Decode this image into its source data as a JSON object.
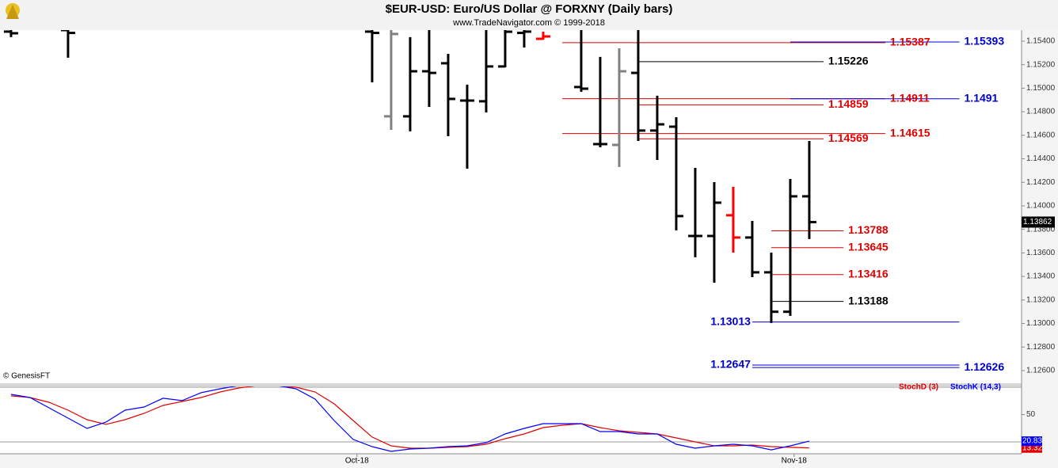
{
  "chart_data": [
    {
      "type": "ohlc",
      "title": "$EUR-USD:  Euro/US Dollar @ FORXNY  (Daily bars)",
      "subtitle": "www.TradeNavigator.com © 1999-2018",
      "credit": "© GenesisFT",
      "x": [
        0,
        3,
        19,
        20,
        21,
        22,
        23,
        24,
        25,
        26,
        27,
        28,
        30,
        31,
        32,
        33,
        34,
        35,
        36,
        37,
        38,
        39,
        40,
        41,
        42
      ],
      "open": [
        1.15481,
        1.15494,
        1.15481,
        1.14761,
        1.14761,
        1.15144,
        1.15212,
        1.14895,
        1.14889,
        1.15185,
        1.1547,
        1.1542,
        1.1501,
        1.14525,
        1.14518,
        1.1513,
        1.1464,
        1.14673,
        1.13744,
        1.13744,
        1.1392,
        1.13731,
        1.13435,
        1.131,
        1.14081
      ],
      "high": [
        1.1556,
        1.1556,
        1.1556,
        1.1556,
        1.15434,
        1.1556,
        1.15292,
        1.1503,
        1.1556,
        1.1556,
        1.1556,
        1.15481,
        1.1556,
        1.15266,
        1.15339,
        1.1556,
        1.14936,
        1.14754,
        1.14323,
        1.14202,
        1.14162,
        1.13872,
        1.13603,
        1.14229,
        1.14552
      ],
      "low": [
        1.15434,
        1.15259,
        1.1505,
        1.14646,
        1.14633,
        1.14841,
        1.14592,
        1.14316,
        1.14794,
        1.15178,
        1.15346,
        1.15413,
        1.1497,
        1.14498,
        1.1433,
        1.14552,
        1.1439,
        1.13792,
        1.13563,
        1.13347,
        1.13603,
        1.13394,
        1.13004,
        1.13065,
        1.13718
      ],
      "close": [
        1.15467,
        1.1547,
        1.1547,
        1.15461,
        1.15144,
        1.1513,
        1.14909,
        1.14895,
        1.15185,
        1.1548,
        1.15481,
        1.1544,
        1.14996,
        1.14525,
        1.15144,
        1.1464,
        1.14693,
        1.13913,
        1.13744,
        1.14027,
        1.13731,
        1.13435,
        1.131,
        1.14081,
        1.13862
      ],
      "colors": [
        "#000000",
        "#000000",
        "#000000",
        "#808080",
        "#000000",
        "#000000",
        "#000000",
        "#000000",
        "#000000",
        "#000000",
        "#000000",
        "#ff0000",
        "#000000",
        "#000000",
        "#808080",
        "#000000",
        "#000000",
        "#000000",
        "#000000",
        "#000000",
        "#ff0000",
        "#000000",
        "#000000",
        "#000000",
        "#000000"
      ],
      "xlim": [
        -0.58,
        53.17
      ],
      "ylim": [
        1.12492,
        1.15494
      ],
      "yticks": [
        {
          "value": 1.154,
          "label": "1.15400"
        },
        {
          "value": 1.152,
          "label": "1.15200"
        },
        {
          "value": 1.15,
          "label": "1.15000"
        },
        {
          "value": 1.148,
          "label": "1.14800"
        },
        {
          "value": 1.146,
          "label": "1.14600"
        },
        {
          "value": 1.144,
          "label": "1.14400"
        },
        {
          "value": 1.142,
          "label": "1.14200"
        },
        {
          "value": 1.14,
          "label": "1.14000"
        },
        {
          "value": 1.138,
          "label": "1.13800"
        },
        {
          "value": 1.136,
          "label": "1.13600"
        },
        {
          "value": 1.134,
          "label": "1.13400"
        },
        {
          "value": 1.132,
          "label": "1.13200"
        },
        {
          "value": 1.13,
          "label": "1.13000"
        },
        {
          "value": 1.128,
          "label": "1.12800"
        },
        {
          "value": 1.126,
          "label": "1.12600"
        }
      ],
      "levels": [
        {
          "value": 1.15387,
          "color": "#e00000",
          "from": 29,
          "to": 46,
          "side": "right"
        },
        {
          "value": 1.15393,
          "color": "#0000cc",
          "from": 41,
          "to": 49.9,
          "side": "right"
        },
        {
          "value": 1.15226,
          "color": "#000000",
          "from": 33,
          "to": 42.75,
          "side": "right"
        },
        {
          "value": 1.14911,
          "color": "#e00000",
          "from": 29,
          "to": 46,
          "side": "right"
        },
        {
          "value": 1.1491,
          "color": "#0000cc",
          "from": 41,
          "to": 49.9,
          "side": "right"
        },
        {
          "value": 1.14859,
          "color": "#e00000",
          "from": 33,
          "to": 42.75,
          "side": "right"
        },
        {
          "value": 1.14615,
          "color": "#e00000",
          "from": 29,
          "to": 46,
          "side": "right"
        },
        {
          "value": 1.14569,
          "color": "#e00000",
          "from": 33,
          "to": 42.75,
          "side": "right"
        },
        {
          "value": 1.13788,
          "color": "#e00000",
          "from": 40,
          "to": 43.8,
          "side": "right"
        },
        {
          "value": 1.13645,
          "color": "#e00000",
          "from": 40,
          "to": 43.8,
          "side": "right"
        },
        {
          "value": 1.13416,
          "color": "#e00000",
          "from": 40,
          "to": 43.8,
          "side": "right"
        },
        {
          "value": 1.13188,
          "color": "#000000",
          "from": 40,
          "to": 43.8,
          "side": "right"
        },
        {
          "value": 1.13013,
          "color": "#0000cc",
          "from": 39,
          "to": 49.9,
          "side": "left"
        },
        {
          "value": 1.12647,
          "color": "#0000cc",
          "from": 39,
          "to": 49.9,
          "side": "left"
        },
        {
          "value": 1.12626,
          "color": "#0000cc",
          "from": 39,
          "to": 49.9,
          "side": "right"
        }
      ]
    },
    {
      "type": "line",
      "x": [
        0,
        1,
        2,
        3,
        4,
        5,
        6,
        7,
        8,
        9,
        10,
        11,
        12,
        13,
        14,
        15,
        16,
        17,
        18,
        19,
        20,
        21,
        22,
        23,
        24,
        25,
        26,
        27,
        28,
        29,
        30,
        31,
        32,
        33,
        34,
        35,
        36,
        37,
        38,
        39,
        40,
        41,
        42
      ],
      "series": [
        {
          "name": "StochD (3)",
          "color": "#e00000",
          "values": [
            70.5,
            68.7,
            63.5,
            54.8,
            44.4,
            39.2,
            44.4,
            51.3,
            60,
            64.4,
            68.7,
            74.8,
            79.2,
            81.8,
            81.8,
            80,
            74.8,
            61.8,
            43.5,
            25.3,
            15.7,
            13.1,
            13.1,
            14,
            14.8,
            17.4,
            23.5,
            28.7,
            35.7,
            38.3,
            40,
            35.7,
            32.2,
            30.5,
            28.7,
            24.4,
            20,
            15.7,
            15.7,
            16.6,
            14.8,
            14,
            13.32
          ]
        },
        {
          "name": "StochK (14,3)",
          "color": "#0000ff",
          "values": [
            72.2,
            68.7,
            57.4,
            46.1,
            34.8,
            41.8,
            54.8,
            58.3,
            67.9,
            65.3,
            74,
            78.3,
            81.8,
            83.5,
            81.8,
            78.3,
            67,
            43.5,
            22.7,
            14.8,
            9.6,
            12.2,
            13.1,
            14.8,
            15.7,
            19.2,
            28.7,
            34.8,
            40,
            40,
            40,
            31.3,
            31.3,
            28.7,
            28.7,
            17.4,
            13.1,
            15.7,
            17.4,
            15.7,
            11.3,
            15.7,
            20.83
          ]
        }
      ],
      "xlim": [
        -0.58,
        53.17
      ],
      "ylim": [
        7,
        80
      ],
      "yticks": [
        50
      ],
      "levels": [
        20,
        80
      ],
      "xticks": [
        {
          "value": 18.2,
          "label": "Oct-18"
        },
        {
          "value": 41.2,
          "label": "Nov-18"
        }
      ]
    }
  ]
}
